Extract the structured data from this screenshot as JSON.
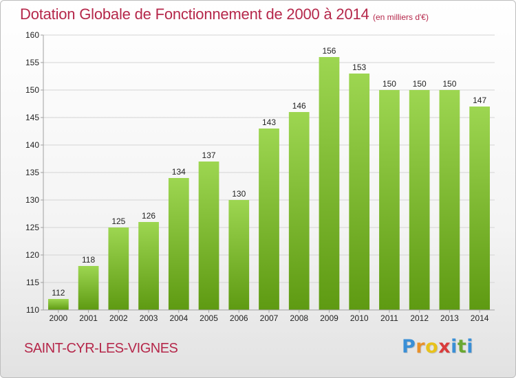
{
  "header": {
    "title": "Dotation Globale de Fonctionnement de 2000 à 2014",
    "subtitle": "(en milliers d'€)"
  },
  "footer": {
    "commune": "SAINT-CYR-LES-VIGNES",
    "logo": {
      "letters": [
        "P",
        "r",
        "o",
        "x",
        "i",
        "t",
        "i"
      ],
      "colors": [
        "#3a8fd6",
        "#e8912a",
        "#e8c21b",
        "#d93b3b",
        "#3a8fd6",
        "#6aa832",
        "#3a8fd6"
      ]
    }
  },
  "colors": {
    "bar_light": "#9dd651",
    "bar_dark": "#5e9a12",
    "text_accent": "#b5274a",
    "grid": "#d4d4d4",
    "axis": "#a0a0a0"
  },
  "chart_data": {
    "type": "bar",
    "title": "Dotation Globale de Fonctionnement de 2000 à 2014",
    "subtitle": "(en milliers d'€)",
    "categories": [
      "2000",
      "2001",
      "2002",
      "2003",
      "2004",
      "2005",
      "2006",
      "2007",
      "2008",
      "2009",
      "2010",
      "2011",
      "2012",
      "2013",
      "2014"
    ],
    "values": [
      112,
      118,
      125,
      126,
      134,
      137,
      130,
      143,
      146,
      156,
      153,
      150,
      150,
      150,
      147
    ],
    "ylim": [
      110,
      160
    ],
    "yticks": [
      110,
      115,
      120,
      125,
      130,
      135,
      140,
      145,
      150,
      155,
      160
    ],
    "xlabel": "",
    "ylabel": "",
    "grid": true,
    "data_labels": true
  }
}
